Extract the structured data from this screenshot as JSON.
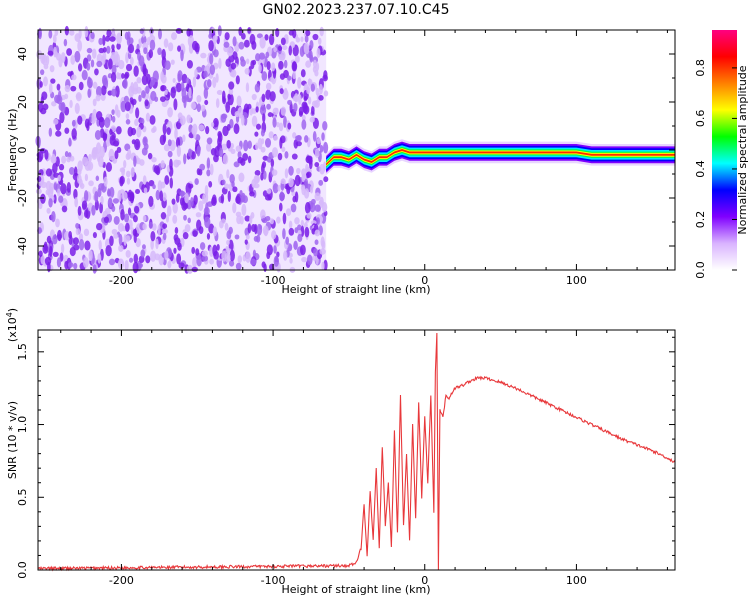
{
  "title": "GN02.2023.237.07.10.C45",
  "chart_data": [
    {
      "type": "heatmap",
      "xlabel": "Height of straight line (km)",
      "ylabel": "Frequency (Hz)",
      "xlim": [
        -255,
        165
      ],
      "ylim": [
        -50,
        50
      ],
      "xticks": [
        -200,
        -100,
        0,
        100
      ],
      "xtick_labels": [
        "-200",
        "-100",
        "0",
        "100"
      ],
      "yticks": [
        -40,
        -20,
        0,
        20,
        40
      ],
      "ytick_labels": [
        "-40",
        "-20",
        "0",
        "20",
        "40"
      ],
      "noise_region_x": [
        -255,
        -65
      ],
      "ridge": {
        "x": [
          -65,
          -60,
          -55,
          -50,
          -45,
          -40,
          -35,
          -30,
          -25,
          -20,
          -15,
          -10,
          -5,
          0,
          10,
          30,
          50,
          70,
          90,
          100,
          110,
          130,
          150,
          165
        ],
        "y": [
          -6,
          -3,
          -3,
          -4,
          -2,
          -4,
          -5,
          -3,
          -3,
          -1,
          0,
          -1,
          -1,
          -1,
          -1,
          -1,
          -1,
          -1,
          -1,
          -1,
          -2,
          -2,
          -2,
          -2
        ]
      },
      "colorbar": {
        "label": "Normalized spectral amplitude",
        "range": [
          0.0,
          0.95
        ],
        "ticks": [
          0.0,
          0.2,
          0.4,
          0.6,
          0.8
        ],
        "tick_labels": [
          "0.0",
          "0.2",
          "0.4",
          "0.6",
          "0.8"
        ],
        "colormap": [
          "#ffffff",
          "#d9b3ff",
          "#8000ff",
          "#0000ff",
          "#00ffff",
          "#00ff00",
          "#ffff00",
          "#ff8000",
          "#ff0000",
          "#ff0080"
        ]
      }
    },
    {
      "type": "line",
      "xlabel": "Height of straight line (km)",
      "ylabel": "SNR (10 * v/v)",
      "scale_note": "(x10",
      "scale_exp": "4",
      "scale_close": ")",
      "xlim": [
        -255,
        165
      ],
      "ylim": [
        0,
        1.65
      ],
      "xticks": [
        -200,
        -100,
        0,
        100
      ],
      "xtick_labels": [
        "-200",
        "-100",
        "0",
        "100"
      ],
      "yticks": [
        0.0,
        0.5,
        1.0,
        1.5
      ],
      "ytick_labels": [
        "0.0",
        "0.5",
        "1.0",
        "1.5"
      ],
      "color": "#e8383b",
      "series": [
        {
          "x": [
            -255,
            -150,
            -50,
            -45,
            -42,
            -40,
            -38,
            -36,
            -34,
            -32,
            -30,
            -28,
            -26,
            -24,
            -22,
            -20,
            -18,
            -16,
            -14,
            -12,
            -10,
            -8,
            -6,
            -4,
            -2,
            0,
            2,
            4,
            6,
            7,
            8,
            9,
            10,
            12,
            14,
            16,
            18,
            20,
            25,
            30,
            35,
            40,
            50,
            60,
            70,
            80,
            90,
            100,
            110,
            120,
            130,
            140,
            150,
            160,
            165
          ],
          "y": [
            0.01,
            0.02,
            0.03,
            0.05,
            0.15,
            0.45,
            0.1,
            0.55,
            0.2,
            0.7,
            0.15,
            0.85,
            0.3,
            0.6,
            0.15,
            0.95,
            0.25,
            1.2,
            0.3,
            0.8,
            0.2,
            1.0,
            0.35,
            1.15,
            0.5,
            1.05,
            0.6,
            1.2,
            0.4,
            1.35,
            1.62,
            0.0,
            1.1,
            1.05,
            1.2,
            1.18,
            1.22,
            1.25,
            1.27,
            1.3,
            1.32,
            1.32,
            1.29,
            1.25,
            1.2,
            1.15,
            1.1,
            1.05,
            1.0,
            0.95,
            0.9,
            0.86,
            0.82,
            0.77,
            0.74
          ]
        }
      ]
    }
  ]
}
